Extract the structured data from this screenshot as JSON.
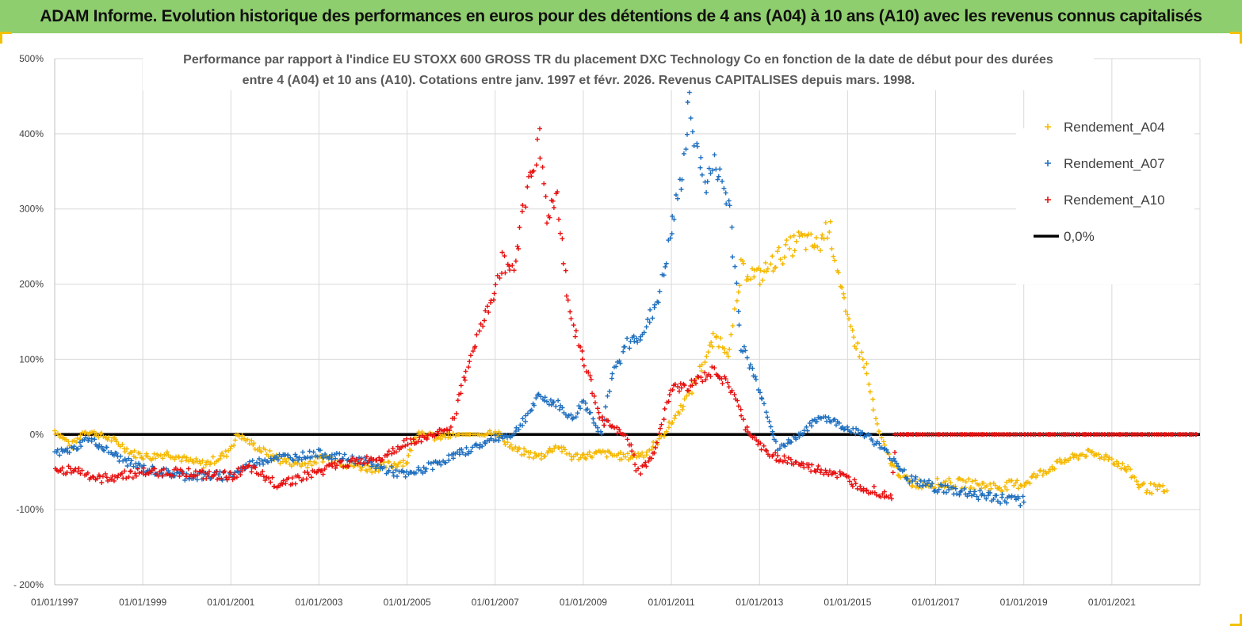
{
  "banner": {
    "title": "ADAM Informe. Evolution historique des performances en euros pour des détentions de 4 ans (A04) à 10 ans (A10) avec les revenus connus capitalisés"
  },
  "chart_data": {
    "type": "scatter",
    "title_lines": [
      "Performance par rapport à l'indice EU STOXX 600 GROSS TR  du placement DXC Technology Co en fonction de la date de début pour des durées",
      "entre 4 (A04) et 10 ans (A10).  Cotations entre janv. 1997 et févr. 2026. Revenus  CAPITALISES depuis mars. 1998."
    ],
    "xlabel": "",
    "ylabel": "",
    "x_range": [
      "01/01/1997",
      "31/12/2022"
    ],
    "x_tick_labels": [
      "01/01/1997",
      "01/01/1999",
      "01/01/2001",
      "01/01/2003",
      "01/01/2005",
      "01/01/2007",
      "01/01/2009",
      "01/01/2011",
      "01/01/2013",
      "01/01/2015",
      "01/01/2017",
      "01/01/2019",
      "01/01/2021"
    ],
    "y_range": [
      -200,
      500
    ],
    "y_ticks": [
      -200,
      -100,
      0,
      100,
      200,
      300,
      400,
      500
    ],
    "y_tick_labels": [
      "- 200%",
      "-100%",
      "0%",
      "100%",
      "200%",
      "300%",
      "400%",
      "500%"
    ],
    "grid": true,
    "legend_position": "top-right",
    "series": [
      {
        "name": "Rendement_A04",
        "color": "#f5b800",
        "marker": "+",
        "points": [
          [
            "1997-01",
            5
          ],
          [
            "1997-06",
            -15
          ],
          [
            "1997-09",
            5
          ],
          [
            "1998-01",
            0
          ],
          [
            "1998-06",
            -10
          ],
          [
            "1998-10",
            -25
          ],
          [
            "1999-03",
            -30
          ],
          [
            "1999-08",
            -25
          ],
          [
            "2000-01",
            -35
          ],
          [
            "2000-06",
            -40
          ],
          [
            "2000-12",
            -25
          ],
          [
            "2001-03",
            0
          ],
          [
            "2001-09",
            -20
          ],
          [
            "2002-03",
            -35
          ],
          [
            "2002-09",
            -40
          ],
          [
            "2003-03",
            -30
          ],
          [
            "2003-09",
            -40
          ],
          [
            "2004-03",
            -45
          ],
          [
            "2004-09",
            -40
          ],
          [
            "2005-01",
            -35
          ],
          [
            "2005-04",
            5
          ],
          [
            "2005-09",
            -5
          ],
          [
            "2006-03",
            0
          ],
          [
            "2006-09",
            0
          ],
          [
            "2007-01",
            5
          ],
          [
            "2007-06",
            -20
          ],
          [
            "2008-01",
            -30
          ],
          [
            "2008-06",
            -15
          ],
          [
            "2008-10",
            -30
          ],
          [
            "2009-06",
            -25
          ],
          [
            "2010-01",
            -30
          ],
          [
            "2010-06",
            -25
          ],
          [
            "2010-10",
            -5
          ],
          [
            "2011-01",
            15
          ],
          [
            "2011-06",
            55
          ],
          [
            "2011-10",
            100
          ],
          [
            "2012-01",
            130
          ],
          [
            "2012-05",
            110
          ],
          [
            "2012-08",
            220
          ],
          [
            "2013-01",
            210
          ],
          [
            "2013-06",
            235
          ],
          [
            "2013-12",
            260
          ],
          [
            "2014-05",
            250
          ],
          [
            "2014-08",
            280
          ],
          [
            "2015-01",
            150
          ],
          [
            "2015-06",
            90
          ],
          [
            "2015-09",
            10
          ],
          [
            "2016-01",
            -40
          ],
          [
            "2016-06",
            -65
          ],
          [
            "2017-01",
            -65
          ],
          [
            "2017-09",
            -65
          ],
          [
            "2018-06",
            -70
          ],
          [
            "2019-01",
            -65
          ],
          [
            "2019-06",
            -50
          ],
          [
            "2019-12",
            -35
          ],
          [
            "2020-06",
            -25
          ],
          [
            "2020-12",
            -30
          ],
          [
            "2021-06",
            -50
          ],
          [
            "2021-09",
            -70
          ],
          [
            "2022-04",
            -75
          ]
        ]
      },
      {
        "name": "Rendement_A07",
        "color": "#1f6fbf",
        "marker": "+",
        "points": [
          [
            "1997-01",
            -25
          ],
          [
            "1997-06",
            -20
          ],
          [
            "1997-10",
            -5
          ],
          [
            "1998-03",
            -20
          ],
          [
            "1998-08",
            -35
          ],
          [
            "1999-01",
            -45
          ],
          [
            "1999-06",
            -50
          ],
          [
            "2000-01",
            -55
          ],
          [
            "2000-06",
            -55
          ],
          [
            "2001-01",
            -55
          ],
          [
            "2001-06",
            -40
          ],
          [
            "2002-01",
            -30
          ],
          [
            "2002-06",
            -30
          ],
          [
            "2003-01",
            -25
          ],
          [
            "2003-06",
            -30
          ],
          [
            "2004-01",
            -35
          ],
          [
            "2004-06",
            -45
          ],
          [
            "2005-01",
            -55
          ],
          [
            "2005-06",
            -45
          ],
          [
            "2006-01",
            -30
          ],
          [
            "2006-06",
            -20
          ],
          [
            "2007-01",
            -5
          ],
          [
            "2007-06",
            0
          ],
          [
            "2008-01",
            50
          ],
          [
            "2008-06",
            40
          ],
          [
            "2008-10",
            20
          ],
          [
            "2009-01",
            45
          ],
          [
            "2009-06",
            0
          ],
          [
            "2009-09",
            80
          ],
          [
            "2010-01",
            120
          ],
          [
            "2010-06",
            140
          ],
          [
            "2010-10",
            190
          ],
          [
            "2011-01",
            270
          ],
          [
            "2011-04",
            350
          ],
          [
            "2011-06",
            440
          ],
          [
            "2011-10",
            330
          ],
          [
            "2012-01",
            360
          ],
          [
            "2012-05",
            300
          ],
          [
            "2012-08",
            120
          ],
          [
            "2013-01",
            60
          ],
          [
            "2013-06",
            -20
          ],
          [
            "2013-12",
            0
          ],
          [
            "2014-06",
            25
          ],
          [
            "2014-12",
            10
          ],
          [
            "2015-06",
            0
          ],
          [
            "2016-01",
            -30
          ],
          [
            "2016-06",
            -60
          ],
          [
            "2017-01",
            -70
          ],
          [
            "2017-06",
            -75
          ],
          [
            "2018-01",
            -80
          ],
          [
            "2018-06",
            -85
          ],
          [
            "2019-01",
            -90
          ]
        ]
      },
      {
        "name": "Rendement_A10",
        "color": "#e81010",
        "marker": "+",
        "points": [
          [
            "1997-01",
            -50
          ],
          [
            "1997-06",
            -45
          ],
          [
            "1998-01",
            -60
          ],
          [
            "1998-06",
            -55
          ],
          [
            "1999-01",
            -50
          ],
          [
            "1999-06",
            -50
          ],
          [
            "2000-01",
            -50
          ],
          [
            "2000-06",
            -55
          ],
          [
            "2001-01",
            -55
          ],
          [
            "2001-06",
            -45
          ],
          [
            "2002-01",
            -65
          ],
          [
            "2002-06",
            -60
          ],
          [
            "2003-01",
            -50
          ],
          [
            "2003-06",
            -40
          ],
          [
            "2004-01",
            -35
          ],
          [
            "2004-06",
            -30
          ],
          [
            "2005-01",
            -10
          ],
          [
            "2005-06",
            -5
          ],
          [
            "2006-01",
            10
          ],
          [
            "2006-06",
            100
          ],
          [
            "2006-12",
            180
          ],
          [
            "2007-03",
            230
          ],
          [
            "2007-06",
            220
          ],
          [
            "2007-10",
            340
          ],
          [
            "2008-01",
            390
          ],
          [
            "2008-03",
            290
          ],
          [
            "2008-06",
            320
          ],
          [
            "2008-09",
            170
          ],
          [
            "2009-01",
            100
          ],
          [
            "2009-06",
            20
          ],
          [
            "2010-01",
            -5
          ],
          [
            "2010-04",
            -50
          ],
          [
            "2010-08",
            -30
          ],
          [
            "2011-01",
            60
          ],
          [
            "2011-06",
            65
          ],
          [
            "2012-01",
            85
          ],
          [
            "2012-06",
            55
          ],
          [
            "2012-09",
            10
          ],
          [
            "2013-03",
            -25
          ],
          [
            "2013-09",
            -35
          ],
          [
            "2014-03",
            -45
          ],
          [
            "2014-09",
            -50
          ],
          [
            "2015-03",
            -65
          ],
          [
            "2015-09",
            -75
          ],
          [
            "2016-01",
            -80
          ],
          [
            "2016-02",
            0
          ],
          [
            "2017-01",
            0
          ],
          [
            "2018-01",
            0
          ],
          [
            "2019-01",
            0
          ],
          [
            "2020-01",
            0
          ],
          [
            "2021-01",
            0
          ],
          [
            "2022-01",
            0
          ],
          [
            "2022-12",
            0
          ]
        ]
      }
    ],
    "reference_line": {
      "name": "0,0%",
      "value": 0,
      "color": "#000000"
    }
  }
}
